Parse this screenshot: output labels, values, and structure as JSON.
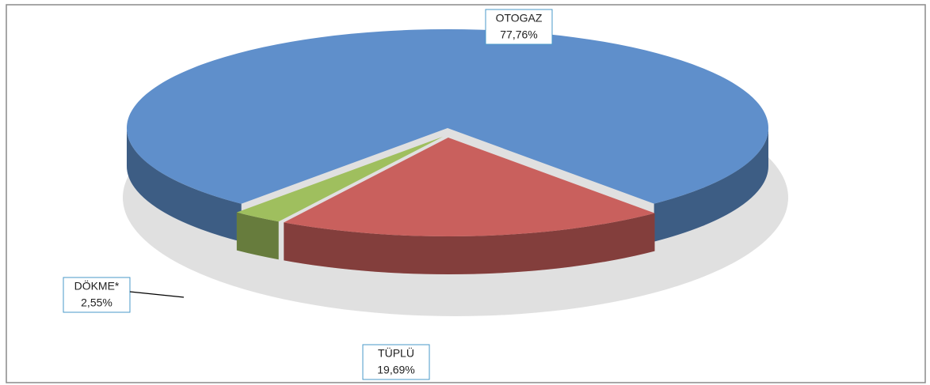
{
  "chart_data": {
    "type": "pie",
    "categories": [
      "OTOGAZ",
      "TÜPLÜ",
      "DÖKME*"
    ],
    "values": [
      77.76,
      19.69,
      2.55
    ],
    "value_labels": [
      "77,76%",
      "19,69%",
      "2,55%"
    ],
    "colors": [
      "#5f8fcb",
      "#c9605d",
      "#9fbf5e"
    ]
  }
}
